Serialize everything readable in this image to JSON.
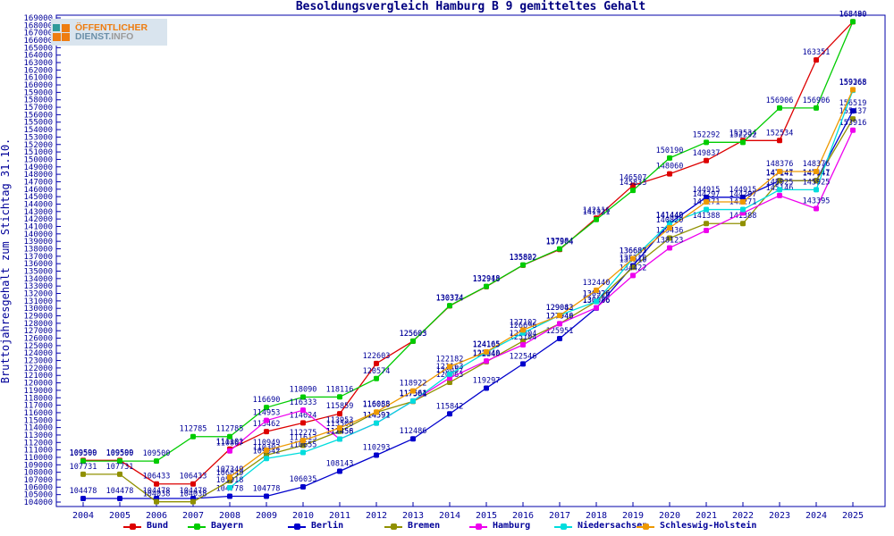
{
  "logo": {
    "line1": "ÖFFENTLICHER",
    "line2a": "DIENST.",
    "line2b": "INFO"
  },
  "chart_data": {
    "type": "line",
    "title": "Besoldungsvergleich Hamburg B 9 gemitteltes Gehalt",
    "ylabel": "Bruttojahresgehalt zum Stichtag 31.10.",
    "xlabel": "",
    "grid": false,
    "legend_position": "bottom",
    "ylim": [
      104000,
      169000
    ],
    "ytick_step": 1000,
    "x": [
      2004,
      2005,
      2006,
      2007,
      2008,
      2009,
      2010,
      2011,
      2012,
      2013,
      2014,
      2015,
      2016,
      2017,
      2018,
      2019,
      2020,
      2021,
      2022,
      2023,
      2024,
      2025
    ],
    "axis_color": "#0000aa",
    "text_color": "#000099",
    "series": [
      {
        "name": "Bund",
        "color": "#dd0000",
        "values": [
          109599,
          109599,
          106433,
          106433,
          111101,
          113462,
          114624,
          115859,
          122603,
          125605,
          130334,
          132918,
          135802,
          137904,
          142116,
          146507,
          148060,
          149837,
          152534,
          152534,
          163351,
          168480
        ],
        "hidden_labels": []
      },
      {
        "name": "Bayern",
        "color": "#00cc00",
        "values": [
          109500,
          109500,
          109500,
          112785,
          112785,
          116690,
          118090,
          118116,
          120574,
          125603,
          130374,
          132948,
          135822,
          137984,
          141921,
          145833,
          150190,
          152292,
          152292,
          156906,
          156906,
          168490
        ],
        "hidden_labels": []
      },
      {
        "name": "Berlin",
        "color": "#0000cc",
        "values": [
          104478,
          104478,
          104478,
          104478,
          104778,
          104778,
          106035,
          108143,
          110293,
          112486,
          115842,
          119297,
          122546,
          125951,
          130036,
          135719,
          141449,
          144915,
          144915,
          147141,
          147141,
          156519
        ],
        "hidden_labels": []
      },
      {
        "name": "Bremen",
        "color": "#909000",
        "values": [
          107731,
          107731,
          104038,
          104038,
          106849,
          110302,
          111613,
          113500,
          116055,
          117501,
          120063,
          122840,
          125604,
          127946,
          130920,
          135510,
          139436,
          141388,
          141388,
          147147,
          147147,
          155437
        ],
        "hidden_labels": []
      },
      {
        "name": "Hamburg",
        "color": "#ee00ee",
        "values": [
          null,
          null,
          null,
          null,
          110867,
          114953,
          116333,
          112458,
          114592,
          117561,
          120657,
          122940,
          125104,
          127940,
          130086,
          134422,
          138123,
          140464,
          142805,
          145146,
          143395,
          153916
        ],
        "hidden_labels": [
          2021,
          2022
        ]
      },
      {
        "name": "Niedersachsen",
        "color": "#00dddd",
        "values": [
          null,
          null,
          null,
          null,
          105918,
          109842,
          110655,
          112456,
          114591,
          117564,
          121163,
          124105,
          126696,
          129082,
          130926,
          136685,
          141440,
          143271,
          143271,
          145925,
          145925,
          159268
        ],
        "hidden_labels": []
      },
      {
        "name": "Schleswig-Holstein",
        "color": "#ee9900",
        "values": [
          null,
          null,
          null,
          null,
          107349,
          110949,
          112275,
          113953,
          116088,
          118922,
          122182,
          124165,
          127102,
          129043,
          132440,
          136687,
          140820,
          144297,
          144297,
          148376,
          148376,
          159368
        ],
        "hidden_labels": []
      }
    ]
  }
}
